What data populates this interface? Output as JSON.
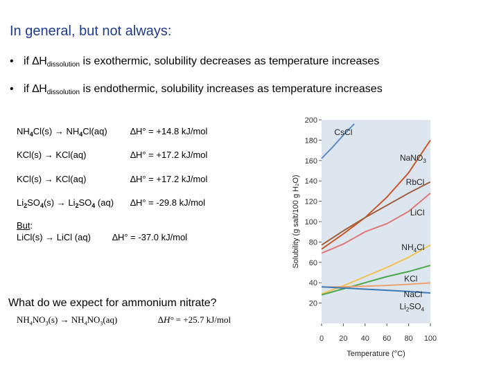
{
  "slide": {
    "title": "In general, but not always:",
    "bullets": [
      {
        "prefix": "if ∆H",
        "sub": "dissolution",
        "text": " is exothermic, solubility decreases as temperature increases"
      },
      {
        "prefix": "if ∆H",
        "sub": "dissolution",
        "text": " is endothermic, solubility increases as temperature increases"
      }
    ],
    "bullet_mark": "•",
    "reactions": [
      {
        "eq_a": "NH",
        "eq_a_sub": "4",
        "eq_b": "Cl(s) ",
        "arrow": "→",
        "eq_c": " NH",
        "eq_c_sub": "4",
        "eq_d": "Cl(aq)",
        "dh": "∆H° = +14.8 kJ/mol"
      },
      {
        "eq_a": "KCl(s) ",
        "arrow": "→",
        "eq_c": " KCl(aq)",
        "dh": "∆H° = +17.2 kJ/mol"
      },
      {
        "eq_a": "KCl(s) ",
        "arrow": "→",
        "eq_c": " KCl(aq)",
        "dh": "∆H° = +17.2 kJ/mol"
      },
      {
        "eq_a": "Li",
        "eq_a_sub": "2",
        "eq_b": "SO",
        "eq_b_sub": "4",
        "eq_b2": "(s) ",
        "arrow": "→",
        "eq_c": " Li",
        "eq_c_sub": "2",
        "eq_d": "SO",
        "eq_d_sub": "4",
        "eq_d2": " (aq)",
        "dh": "∆H° = -29.8 kJ/mol"
      }
    ],
    "but_label": "But",
    "but_colon": ":",
    "licl_reaction": {
      "left": "LiCl(s) ",
      "arrow": "→",
      "right": " LiCl (aq)",
      "dh": "∆H° = -37.0 kJ/mol"
    },
    "question": "What do we expect for ammonium nitrate?",
    "nitrate": {
      "a": "NH",
      "a_sub": "4",
      "b": "NO",
      "b_sub": "3",
      "c": "(s) → NH",
      "c_sub": "4",
      "d": "NO",
      "d_sub": "3",
      "e": "(aq)",
      "dh_sym": "∆H°",
      "dh_val": " = +25.7 kJ/mol"
    }
  },
  "chart_data": {
    "type": "line",
    "xlabel": "Temperature (°C)",
    "ylabel": "Solubility (g salt/100 g H₂O)",
    "ylabel_sub": "2",
    "xlim": [
      0,
      100
    ],
    "ylim": [
      0,
      200
    ],
    "x_ticks": [
      0,
      20,
      40,
      60,
      80,
      100
    ],
    "y_ticks": [
      20,
      40,
      60,
      80,
      100,
      120,
      140,
      160,
      180,
      200
    ],
    "colors": {
      "bg": "#dde6ee",
      "CsCl": "#5b8ac9",
      "NaNO3": "#c8552a",
      "RbCl": "#a0603a",
      "LiCl": "#e07878",
      "NH4Cl": "#f2c14e",
      "KCl": "#4aa84a",
      "NaCl": "#f0a070",
      "Li2SO4": "#3a7ab5"
    },
    "series": [
      {
        "name": "CsCl",
        "x": [
          0,
          10,
          20,
          30
        ],
        "y": [
          162,
          173,
          185,
          196
        ]
      },
      {
        "name": "NaNO3",
        "x": [
          0,
          20,
          40,
          60,
          80,
          100
        ],
        "y": [
          73,
          88,
          104,
          124,
          148,
          180
        ]
      },
      {
        "name": "RbCl",
        "x": [
          0,
          20,
          40,
          60,
          80,
          100
        ],
        "y": [
          77,
          91,
          104,
          116,
          128,
          139
        ]
      },
      {
        "name": "LiCl",
        "x": [
          0,
          20,
          40,
          60,
          80,
          100
        ],
        "y": [
          69,
          78,
          90,
          98,
          110,
          128
        ]
      },
      {
        "name": "NH4Cl",
        "x": [
          0,
          20,
          40,
          60,
          80,
          100
        ],
        "y": [
          29,
          37,
          46,
          55,
          65,
          77
        ]
      },
      {
        "name": "KCl",
        "x": [
          0,
          20,
          40,
          60,
          80,
          100
        ],
        "y": [
          28,
          34,
          40,
          46,
          51,
          57
        ]
      },
      {
        "name": "NaCl",
        "x": [
          0,
          20,
          40,
          60,
          80,
          100
        ],
        "y": [
          35.7,
          36,
          36.6,
          37.3,
          38.4,
          39.8
        ]
      },
      {
        "name": "Li2SO4",
        "x": [
          0,
          20,
          40,
          60,
          80,
          100
        ],
        "y": [
          36,
          34.8,
          33.7,
          32.6,
          31.4,
          29.9
        ]
      }
    ],
    "labels": [
      {
        "name": "CsCl",
        "text": "CsCl",
        "sub": ""
      },
      {
        "name": "NaNO3",
        "text": "NaNO",
        "sub": "3"
      },
      {
        "name": "RbCl",
        "text": "RbCl",
        "sub": ""
      },
      {
        "name": "LiCl",
        "text": "LiCl",
        "sub": ""
      },
      {
        "name": "NH4Cl",
        "text": "NH",
        "sub": "4",
        "tail": "Cl"
      },
      {
        "name": "KCl",
        "text": "KCl",
        "sub": ""
      },
      {
        "name": "NaCl",
        "text": "NaCl",
        "sub": ""
      },
      {
        "name": "Li2SO4",
        "text": "Li",
        "sub": "2",
        "tail": "SO",
        "sub2": "4"
      }
    ]
  }
}
